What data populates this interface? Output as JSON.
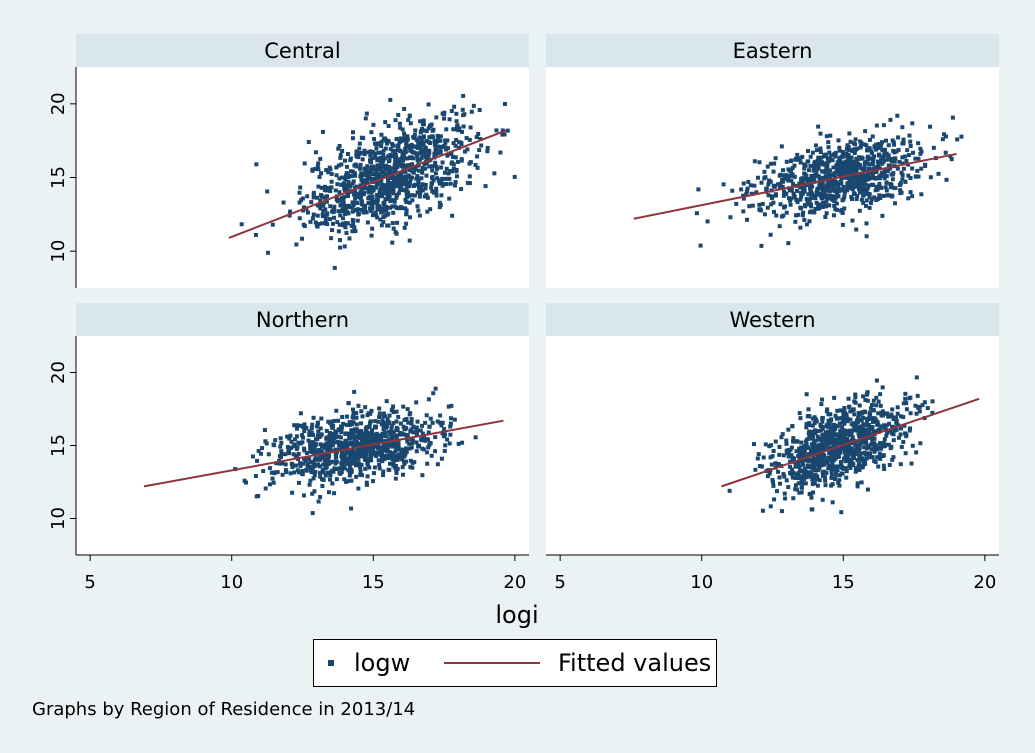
{
  "chart_data": {
    "type": "scatter",
    "panels": [
      {
        "title": "Central",
        "n": 1000,
        "x_mean": 15.6,
        "x_sd": 1.5,
        "y_mean": 15.0,
        "y_sd": 1.9,
        "fit": {
          "x": [
            9.9,
            19.7
          ],
          "y": [
            10.9,
            18.2
          ]
        }
      },
      {
        "title": "Eastern",
        "n": 850,
        "x_mean": 14.8,
        "x_sd": 1.5,
        "y_mean": 14.8,
        "y_sd": 1.4,
        "fit": {
          "x": [
            7.6,
            19.0
          ],
          "y": [
            12.2,
            16.6
          ]
        }
      },
      {
        "title": "Northern",
        "n": 900,
        "x_mean": 14.4,
        "x_sd": 1.5,
        "y_mean": 14.9,
        "y_sd": 1.4,
        "fit": {
          "x": [
            6.9,
            19.6
          ],
          "y": [
            12.2,
            16.7
          ]
        }
      },
      {
        "title": "Western",
        "n": 900,
        "x_mean": 14.8,
        "x_sd": 1.2,
        "y_mean": 15.2,
        "y_sd": 1.6,
        "fit": {
          "x": [
            10.7,
            19.8
          ],
          "y": [
            12.2,
            18.2
          ]
        }
      }
    ],
    "xlabel": "logi",
    "xlim": [
      4.5,
      20.5
    ],
    "ylim": [
      7.5,
      22.5
    ],
    "xticks": [
      5,
      10,
      15,
      20
    ],
    "yticks": [
      10,
      15,
      20
    ],
    "legend": [
      "logw",
      "Fitted values"
    ],
    "legend_position": "bottom",
    "note": "Graphs by Region of Residence in 2013/14",
    "grid": false
  },
  "colors": {
    "points": "#1a476f",
    "fit": "#90353b",
    "panel_header": "#d9e6eb",
    "background": "#eaf2f3"
  }
}
